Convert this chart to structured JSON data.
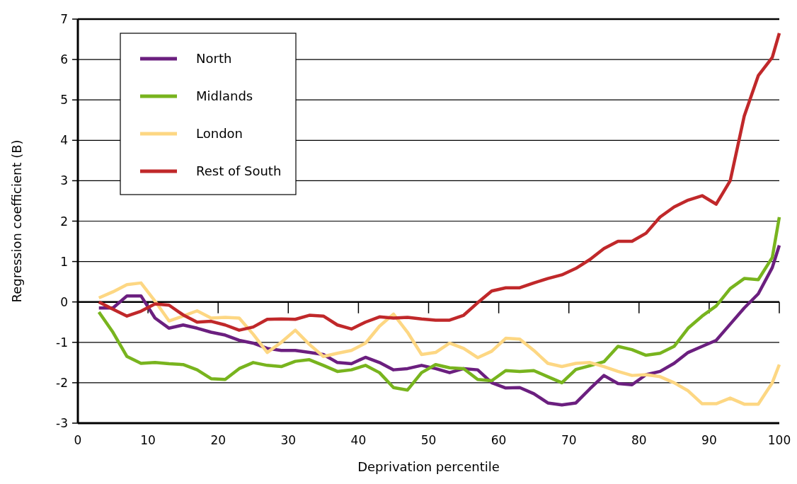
{
  "chart_data": {
    "type": "line",
    "xlabel": "Deprivation percentile",
    "ylabel": "Regression coefficient (B)",
    "x": [
      3,
      5,
      7,
      9,
      11,
      13,
      15,
      17,
      19,
      21,
      23,
      25,
      27,
      29,
      31,
      33,
      35,
      37,
      39,
      41,
      43,
      45,
      47,
      49,
      51,
      53,
      55,
      57,
      59,
      61,
      63,
      65,
      67,
      69,
      71,
      73,
      75,
      77,
      79,
      81,
      83,
      85,
      87,
      89,
      91,
      93,
      95,
      97,
      99,
      100
    ],
    "series": [
      {
        "name": "North",
        "color": "#6b1f7f",
        "values": [
          -0.15,
          -0.15,
          0.15,
          0.15,
          -0.4,
          -0.65,
          -0.57,
          -0.65,
          -0.75,
          -0.82,
          -0.95,
          -1.02,
          -1.15,
          -1.2,
          -1.2,
          -1.25,
          -1.3,
          -1.5,
          -1.53,
          -1.37,
          -1.5,
          -1.68,
          -1.65,
          -1.57,
          -1.65,
          -1.75,
          -1.65,
          -1.68,
          -2.0,
          -2.13,
          -2.12,
          -2.27,
          -2.5,
          -2.55,
          -2.5,
          -2.15,
          -1.82,
          -2.02,
          -2.05,
          -1.8,
          -1.72,
          -1.52,
          -1.25,
          -1.1,
          -0.95,
          -0.55,
          -0.15,
          0.2,
          0.85,
          1.4
        ]
      },
      {
        "name": "Midlands",
        "color": "#78b41e",
        "values": [
          -0.25,
          -0.75,
          -1.35,
          -1.52,
          -1.5,
          -1.53,
          -1.55,
          -1.68,
          -1.9,
          -1.92,
          -1.65,
          -1.5,
          -1.57,
          -1.6,
          -1.47,
          -1.43,
          -1.57,
          -1.72,
          -1.68,
          -1.57,
          -1.75,
          -2.12,
          -2.18,
          -1.75,
          -1.55,
          -1.63,
          -1.65,
          -1.92,
          -1.95,
          -1.7,
          -1.72,
          -1.7,
          -1.85,
          -2.0,
          -1.67,
          -1.58,
          -1.48,
          -1.1,
          -1.18,
          -1.32,
          -1.27,
          -1.1,
          -0.65,
          -0.35,
          -0.1,
          0.33,
          0.58,
          0.55,
          1.1,
          2.1
        ]
      },
      {
        "name": "London",
        "color": "#fdd783",
        "values": [
          0.1,
          0.25,
          0.43,
          0.47,
          0.02,
          -0.47,
          -0.35,
          -0.22,
          -0.4,
          -0.38,
          -0.4,
          -0.8,
          -1.25,
          -1.0,
          -0.7,
          -1.05,
          -1.35,
          -1.27,
          -1.2,
          -1.02,
          -0.6,
          -0.3,
          -0.75,
          -1.3,
          -1.25,
          -1.02,
          -1.15,
          -1.38,
          -1.22,
          -0.9,
          -0.92,
          -1.2,
          -1.52,
          -1.6,
          -1.52,
          -1.5,
          -1.6,
          -1.72,
          -1.82,
          -1.8,
          -1.85,
          -2.0,
          -2.2,
          -2.52,
          -2.52,
          -2.38,
          -2.53,
          -2.53,
          -2.0,
          -1.55
        ]
      },
      {
        "name": "Rest of South",
        "color": "#c0282a",
        "values": [
          0,
          -0.18,
          -0.35,
          -0.23,
          -0.05,
          -0.08,
          -0.32,
          -0.5,
          -0.48,
          -0.57,
          -0.7,
          -0.62,
          -0.43,
          -0.42,
          -0.43,
          -0.33,
          -0.35,
          -0.57,
          -0.67,
          -0.5,
          -0.37,
          -0.4,
          -0.38,
          -0.42,
          -0.45,
          -0.45,
          -0.33,
          -0.02,
          0.27,
          0.35,
          0.35,
          0.47,
          0.58,
          0.67,
          0.83,
          1.05,
          1.32,
          1.5,
          1.5,
          1.7,
          2.1,
          2.35,
          2.52,
          2.63,
          2.42,
          3.0,
          4.6,
          5.6,
          6.05,
          6.65
        ]
      }
    ],
    "xlim": [
      0,
      100
    ],
    "xticks": [
      0,
      10,
      20,
      30,
      40,
      50,
      60,
      70,
      80,
      90,
      100
    ],
    "ylim": [
      -3,
      7
    ],
    "yticks": [
      -3,
      -2,
      -1,
      0,
      1,
      2,
      3,
      4,
      5,
      6,
      7
    ],
    "grid": "y",
    "legend": "top left",
    "line_style": "solid"
  }
}
